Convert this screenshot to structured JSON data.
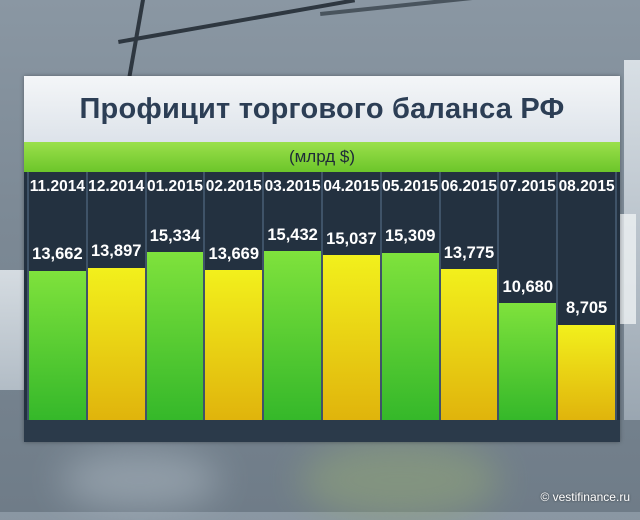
{
  "chart_data": {
    "type": "bar",
    "title": "Профицит торгового баланса РФ",
    "subtitle": "(млрд $)",
    "categories": [
      "11.2014",
      "12.2014",
      "01.2015",
      "02.2015",
      "03.2015",
      "04.2015",
      "05.2015",
      "06.2015",
      "07.2015",
      "08.2015"
    ],
    "value_labels": [
      "13,662",
      "13,897",
      "15,334",
      "13,669",
      "15,432",
      "15,037",
      "15,309",
      "13,775",
      "10,680",
      "8,705"
    ],
    "values": [
      13.662,
      13.897,
      15.334,
      13.669,
      15.432,
      15.037,
      15.309,
      13.775,
      10.68,
      8.705
    ],
    "bar_colors": [
      "green",
      "yellow",
      "green",
      "yellow",
      "green",
      "yellow",
      "green",
      "yellow",
      "green",
      "yellow"
    ],
    "ylim": [
      0,
      17
    ],
    "grid": false,
    "legend": "none"
  },
  "colors": {
    "green": "#35b82a",
    "yellow": "#e8c810",
    "panel": "#233140",
    "header_green": "#7cd03a",
    "title_text": "#2c3e55"
  },
  "watermark": "© vestifinance.ru"
}
